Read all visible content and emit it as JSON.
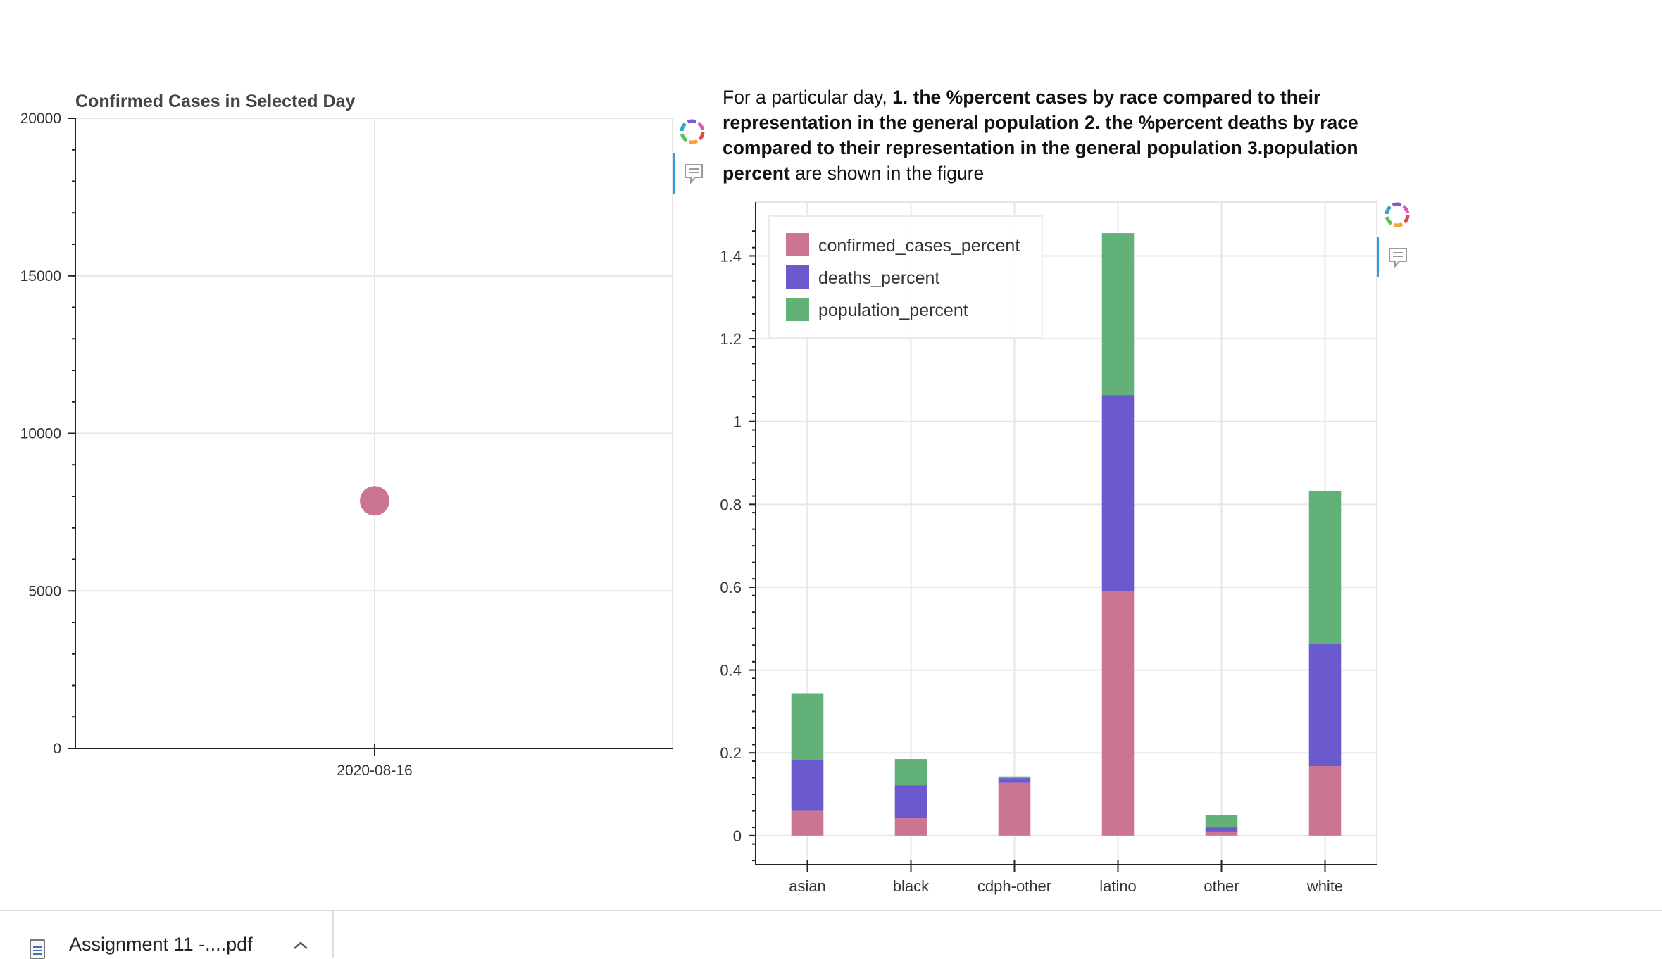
{
  "left_chart": {
    "title": "Confirmed Cases in Selected Day"
  },
  "description": {
    "part1": "For a particular day, ",
    "part2": "1. the %percent cases by race compared to their representation in the general population 2. the %percent deaths by race compared to their representation in the general population 3.population percent",
    "part3": " are shown in the figure"
  },
  "colors": {
    "confirmed": "#cc7591",
    "deaths": "#6a5acd",
    "population": "#62b178"
  },
  "icons": {
    "toolbar_logo": "bokeh-logo-icon",
    "hover_tool": "hover-comment-icon",
    "file": "pdf-file-icon",
    "chevron": "chevron-up-icon"
  },
  "chart_data": [
    {
      "type": "scatter",
      "title": "Confirmed Cases in Selected Day",
      "x": [
        "2020-08-16"
      ],
      "y": [
        7860
      ],
      "ylim": [
        0,
        20000
      ],
      "yticks": [
        0,
        5000,
        10000,
        15000,
        20000
      ],
      "xticks": [
        "2020-08-16"
      ],
      "grid": true,
      "color": "#cc7591"
    },
    {
      "type": "bar",
      "stacked": true,
      "categories": [
        "asian",
        "black",
        "cdph-other",
        "latino",
        "other",
        "white"
      ],
      "series": [
        {
          "name": "confirmed_cases_percent",
          "values": [
            0.06,
            0.042,
            0.128,
            0.59,
            0.01,
            0.168
          ]
        },
        {
          "name": "deaths_percent",
          "values": [
            0.124,
            0.08,
            0.011,
            0.474,
            0.01,
            0.296
          ]
        },
        {
          "name": "population_percent",
          "values": [
            0.16,
            0.063,
            0.004,
            0.391,
            0.03,
            0.369
          ]
        }
      ],
      "ylim": [
        -0.07,
        1.53
      ],
      "yticks": [
        0,
        0.2,
        0.4,
        0.6,
        0.8,
        1,
        1.2,
        1.4
      ],
      "ytick_labels": [
        "0",
        "0.2",
        "0.4",
        "0.6",
        "0.8",
        "1",
        "1.2",
        "1.4"
      ],
      "legend": "top-left",
      "grid": true
    }
  ],
  "download_bar": {
    "file_name": "Assignment 11 -....pdf"
  }
}
